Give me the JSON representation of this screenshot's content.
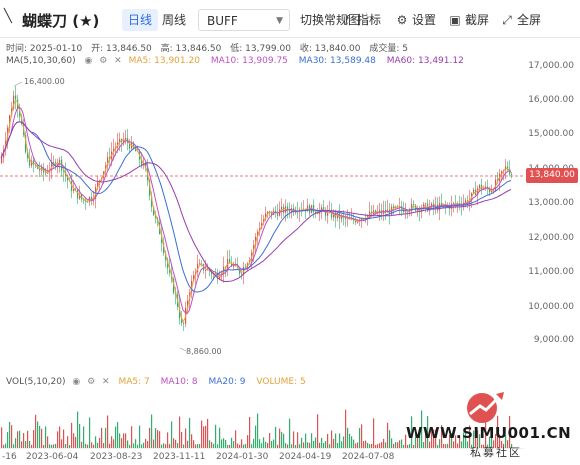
{
  "toolbar": {
    "back_icon": "back-arrow-icon",
    "title": "蝴蝶刀 (★)",
    "tabs": [
      {
        "label": "日线",
        "active": true
      },
      {
        "label": "周线",
        "active": false
      }
    ],
    "product_select": "BUFF",
    "switch_label": "切换常规图",
    "indicator_label": "指标",
    "settings_label": "设置",
    "screenshot_label": "截屏",
    "fullscreen_label": "全屏"
  },
  "info": {
    "time": "时间: 2025-01-10",
    "open": "开: 13,846.50",
    "high": "高: 13,846.50",
    "low": "低: 13,799.00",
    "close": "收: 13,840.00",
    "volume": "成交量: 5"
  },
  "ma": {
    "label": "MA(5,10,30,60)",
    "ma5": "MA5: 13,901.20",
    "ma10": "MA10: 13,909.75",
    "ma30": "MA30: 13,589.48",
    "ma60": "MA60: 13,491.12"
  },
  "price_axis": {
    "ticks": [
      "17,000.00",
      "16,000.00",
      "15,000.00",
      "14,000.00",
      "13,000.00",
      "12,000.00",
      "11,000.00",
      "10,000.00",
      "9,000.00"
    ],
    "current_price": "13,840.00"
  },
  "annotations": {
    "high_label": "16,400.00",
    "low_label": "8,860.00"
  },
  "volume_panel": {
    "label": "VOL(5,10,20)",
    "ma5": "MA5: 7",
    "ma10": "MA10: 8",
    "ma20": "MA20: 9",
    "volume": "VOLUME: 5"
  },
  "date_axis": [
    "-16",
    "2023-06-04",
    "2023-08-23",
    "2023-11-11",
    "2024-01-30",
    "2024-04-19",
    "2024-07-08"
  ],
  "watermark": {
    "url": "WWW.SIMU001.CN",
    "subtitle": "私募社区"
  },
  "colors": {
    "up": "#e05252",
    "down": "#2fae6e",
    "ma5": "#e6a23c",
    "ma10": "#c050c0",
    "ma30": "#3b6fd6",
    "ma60": "#9b3cb0"
  }
}
